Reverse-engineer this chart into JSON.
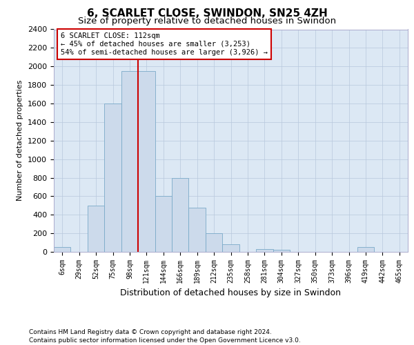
{
  "title": "6, SCARLET CLOSE, SWINDON, SN25 4ZH",
  "subtitle": "Size of property relative to detached houses in Swindon",
  "xlabel": "Distribution of detached houses by size in Swindon",
  "ylabel": "Number of detached properties",
  "footnote1": "Contains HM Land Registry data © Crown copyright and database right 2024.",
  "footnote2": "Contains public sector information licensed under the Open Government Licence v3.0.",
  "bin_labels": [
    "6sqm",
    "29sqm",
    "52sqm",
    "75sqm",
    "98sqm",
    "121sqm",
    "144sqm",
    "166sqm",
    "189sqm",
    "212sqm",
    "235sqm",
    "258sqm",
    "281sqm",
    "304sqm",
    "327sqm",
    "350sqm",
    "373sqm",
    "396sqm",
    "419sqm",
    "442sqm",
    "465sqm"
  ],
  "bar_heights": [
    50,
    0,
    500,
    1600,
    1950,
    1950,
    600,
    800,
    480,
    200,
    80,
    0,
    30,
    20,
    0,
    0,
    0,
    0,
    50,
    0,
    0
  ],
  "bar_color": "#ccdaeb",
  "bar_edge_color": "#7aaac8",
  "property_label": "6 SCARLET CLOSE: 112sqm",
  "annotation_line1": "← 45% of detached houses are smaller (3,253)",
  "annotation_line2": "54% of semi-detached houses are larger (3,926) →",
  "annotation_box_color": "#ffffff",
  "annotation_box_edge_color": "#cc0000",
  "line_color": "#cc0000",
  "ylim": [
    0,
    2400
  ],
  "yticks": [
    0,
    200,
    400,
    600,
    800,
    1000,
    1200,
    1400,
    1600,
    1800,
    2000,
    2200,
    2400
  ],
  "grid_color": "#b8c8dc",
  "bg_color": "#dce8f4",
  "title_fontsize": 11,
  "subtitle_fontsize": 9.5,
  "axis_fontsize": 8,
  "xlabel_fontsize": 9,
  "ylabel_fontsize": 8,
  "footnote_fontsize": 6.5
}
